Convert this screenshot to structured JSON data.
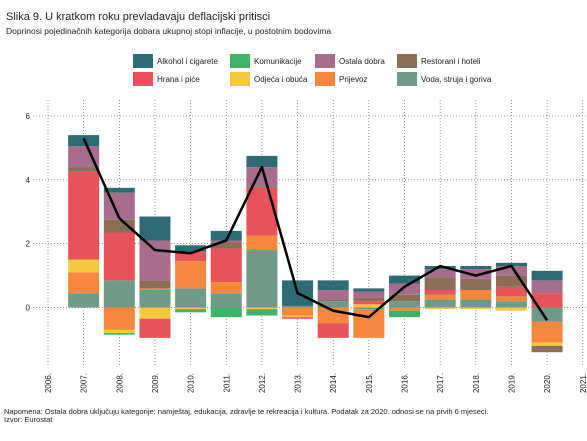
{
  "chart_data": {
    "type": "stacked-bar-line",
    "title": "Slika 9. U kratkom roku prevladavaju deflacijski pritisci",
    "subtitle": "Doprinosi pojedinačnih kategorija dobara ukupnoj stopi inflacije, u postotnim bodovima",
    "categories": [
      "2006.",
      "2007.",
      "2008.",
      "2009.",
      "2010.",
      "2011.",
      "2012.",
      "2013.",
      "2014.",
      "2015.",
      "2016.",
      "2017.",
      "2018.",
      "2019.",
      "2020.",
      "2021."
    ],
    "series": [
      {
        "name": "Alkohol i cigarete",
        "color": "#2e6b73",
        "values": [
          null,
          0.35,
          0.15,
          0.75,
          0.2,
          0.3,
          0.35,
          0.8,
          0.3,
          0.1,
          0.25,
          0.1,
          0.1,
          0.1,
          0.3,
          null
        ]
      },
      {
        "name": "Komunikacije",
        "color": "#3db36b",
        "values": [
          null,
          0,
          -0.05,
          0,
          -0.1,
          -0.3,
          -0.2,
          0,
          0,
          0,
          -0.2,
          0,
          0,
          0,
          0,
          null
        ]
      },
      {
        "name": "Ostala dobra",
        "color": "#a86d8c",
        "values": [
          null,
          0.65,
          0.85,
          1.25,
          0,
          0.05,
          0.6,
          0,
          0.3,
          0.2,
          0.35,
          0.25,
          0.3,
          0.3,
          0.4,
          null
        ]
      },
      {
        "name": "Restorani i hoteli",
        "color": "#8a6e5a",
        "values": [
          null,
          0.15,
          0.4,
          0.25,
          0,
          0.2,
          0.05,
          0,
          0.05,
          0.1,
          0.2,
          0.4,
          0.35,
          0.35,
          -0.2,
          null
        ]
      },
      {
        "name": "Hrana i piće",
        "color": "#e8525a",
        "values": [
          null,
          2.75,
          1.5,
          -0.6,
          0.3,
          1.05,
          1.5,
          -0.05,
          -0.45,
          0.1,
          0,
          0.15,
          0,
          0.3,
          0.45,
          null
        ]
      },
      {
        "name": "Odjeća i obuća",
        "color": "#f5c842",
        "values": [
          null,
          0.4,
          -0.1,
          -0.35,
          -0.05,
          0,
          -0.05,
          -0.05,
          0,
          0.1,
          0,
          -0.05,
          -0.05,
          -0.1,
          -0.1,
          null
        ]
      },
      {
        "name": "Prijevoz",
        "color": "#f5883d",
        "values": [
          null,
          0.65,
          -0.7,
          0.05,
          0.85,
          0.35,
          0.45,
          -0.25,
          -0.5,
          -0.9,
          -0.1,
          0.15,
          0.3,
          0.15,
          -0.65,
          null
        ]
      },
      {
        "name": "Voda, struja i goriva",
        "color": "#6f9a8a",
        "values": [
          null,
          0.45,
          0.85,
          0.55,
          0.6,
          0.45,
          1.8,
          0.05,
          0.2,
          -0.05,
          0.2,
          0.25,
          0.25,
          0.2,
          -0.45,
          null
        ]
      }
    ],
    "line": {
      "color": "#000000",
      "values": [
        null,
        5.3,
        2.8,
        1.8,
        1.7,
        2.1,
        4.4,
        0.45,
        -0.1,
        -0.3,
        0.65,
        1.3,
        1.0,
        1.3,
        -0.4,
        null
      ]
    },
    "ylim": [
      -1.8,
      6.5
    ],
    "yticks": [
      0,
      2,
      4,
      6
    ],
    "grid": true,
    "note": "Napomena: Ostala dobra uključuju kategorije: namještaj, edukacija, zdravlje te rekreacija i kultura. Podatak za 2020. odnosi se na prvih 6 mjeseci.",
    "source": "Izvor: Eurostat"
  }
}
